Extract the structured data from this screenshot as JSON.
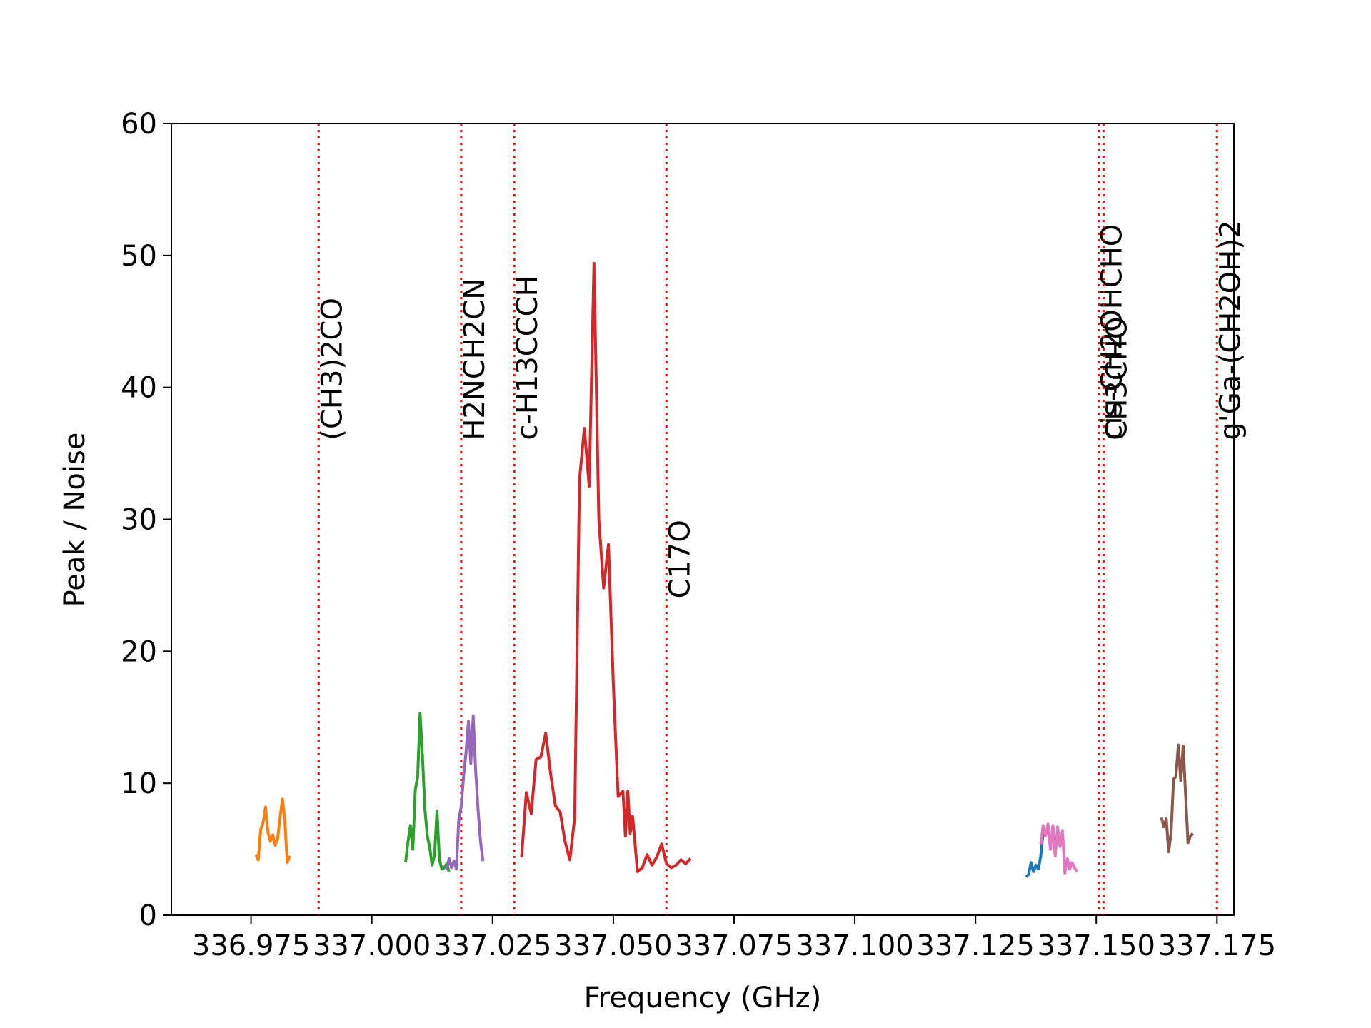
{
  "chart_data": {
    "type": "line",
    "title": "",
    "xlabel": "Frequency (GHz)",
    "ylabel": "Peak / Noise",
    "xlim": [
      336.9585,
      337.1785
    ],
    "ylim": [
      0,
      60
    ],
    "x_ticks": [
      336.975,
      337.0,
      337.025,
      337.05,
      337.075,
      337.1,
      337.125,
      337.15,
      337.175
    ],
    "x_tick_labels": [
      "336.975",
      "337.000",
      "337.025",
      "337.050",
      "337.075",
      "337.100",
      "337.125",
      "337.150",
      "337.175"
    ],
    "y_ticks": [
      0,
      10,
      20,
      30,
      40,
      50,
      60
    ],
    "y_tick_labels": [
      "0",
      "10",
      "20",
      "30",
      "40",
      "50",
      "60"
    ],
    "grid": false,
    "series": [
      {
        "color": "#ff7f0e",
        "x": [
          336.976,
          336.9765,
          336.977,
          336.9775,
          336.978,
          336.9785,
          336.979,
          336.9795,
          336.98,
          336.9805,
          336.981,
          336.9815,
          336.982,
          336.9825,
          336.983
        ],
        "y": [
          4.6,
          4.2,
          6.5,
          7.0,
          8.2,
          6.3,
          5.6,
          6.1,
          5.3,
          5.8,
          7.4,
          8.8,
          7.2,
          4.0,
          4.5
        ]
      },
      {
        "color": "#2ca02c",
        "x": [
          337.007,
          337.0075,
          337.008,
          337.0085,
          337.009,
          337.0095,
          337.01,
          337.0105,
          337.011,
          337.0115,
          337.012,
          337.0125,
          337.013,
          337.0135,
          337.014,
          337.0145,
          337.015,
          337.0155,
          337.016
        ],
        "y": [
          4.0,
          5.6,
          6.8,
          5.0,
          9.5,
          10.5,
          15.3,
          12.0,
          8.0,
          6.0,
          5.1,
          3.8,
          4.6,
          7.9,
          4.2,
          3.5,
          3.6,
          3.9,
          3.3
        ]
      },
      {
        "color": "#9467bd",
        "x": [
          337.0155,
          337.016,
          337.0165,
          337.017,
          337.0175,
          337.018,
          337.0185,
          337.019,
          337.0195,
          337.02,
          337.0205,
          337.021,
          337.0215,
          337.022,
          337.0225,
          337.023
        ],
        "y": [
          3.4,
          4.3,
          3.6,
          4.1,
          3.5,
          7.2,
          8.2,
          10.5,
          12.3,
          14.7,
          11.5,
          15.1,
          11.0,
          8.0,
          5.6,
          4.1
        ]
      },
      {
        "color": "#d62728",
        "x": [
          337.031,
          337.032,
          337.033,
          337.034,
          337.035,
          337.036,
          337.037,
          337.038,
          337.039,
          337.04,
          337.041,
          337.042,
          337.043,
          337.044,
          337.045,
          337.046,
          337.047,
          337.048,
          337.049,
          337.05,
          337.051,
          337.052,
          337.0525,
          337.053,
          337.0535,
          337.054,
          337.055,
          337.056,
          337.057,
          337.058,
          337.059,
          337.06,
          337.061,
          337.062,
          337.063,
          337.064,
          337.065,
          337.066
        ],
        "y": [
          4.4,
          9.3,
          7.7,
          11.8,
          12.0,
          13.8,
          10.8,
          8.3,
          7.8,
          5.6,
          4.2,
          7.4,
          33.0,
          36.9,
          32.5,
          49.4,
          30.0,
          24.8,
          28.1,
          17.5,
          9.0,
          9.4,
          6.0,
          9.4,
          6.2,
          7.5,
          3.3,
          3.6,
          4.6,
          3.8,
          4.4,
          5.4,
          3.9,
          3.6,
          3.8,
          4.2,
          3.9,
          4.3
        ]
      },
      {
        "color": "#1f77b4",
        "x": [
          337.1355,
          337.136,
          337.1365,
          337.137,
          337.1375,
          337.138,
          337.1385,
          337.139
        ],
        "y": [
          2.9,
          3.1,
          4.0,
          3.3,
          3.8,
          3.5,
          4.5,
          6.3
        ]
      },
      {
        "color": "#e377c2",
        "x": [
          337.1385,
          337.139,
          337.1395,
          337.14,
          337.1405,
          337.141,
          337.1415,
          337.142,
          337.1425,
          337.143,
          337.1435,
          337.144,
          337.1445,
          337.145,
          337.1455,
          337.146
        ],
        "y": [
          5.4,
          6.8,
          6.0,
          6.9,
          5.0,
          6.8,
          4.5,
          6.7,
          5.2,
          6.4,
          3.2,
          4.3,
          3.5,
          4.0,
          3.6,
          3.3
        ]
      },
      {
        "color": "#8c564b",
        "x": [
          337.1635,
          337.164,
          337.1645,
          337.165,
          337.1655,
          337.166,
          337.1665,
          337.167,
          337.1675,
          337.168,
          337.1685,
          337.169,
          337.1695,
          337.17
        ],
        "y": [
          7.4,
          6.7,
          7.3,
          4.8,
          6.3,
          10.3,
          10.5,
          12.9,
          10.2,
          12.8,
          9.1,
          5.5,
          6.0,
          6.2
        ]
      }
    ],
    "line_markers": [
      {
        "x": 336.989,
        "label": "(CH3)2CO",
        "label_y": 36
      },
      {
        "x": 337.0185,
        "label": "H2NCH2CN",
        "label_y": 36
      },
      {
        "x": 337.0295,
        "label": "c-H13CCCH",
        "label_y": 36
      },
      {
        "x": 337.061,
        "label": "C17O",
        "label_y": 24
      },
      {
        "x": 337.1505,
        "label": "cis-CH2OHCHO",
        "label_y": 36
      },
      {
        "x": 337.1515,
        "label": "CH3CHO",
        "label_y": 36
      },
      {
        "x": 337.175,
        "label": "g'Ga-(CH2OH)2",
        "label_y": 36
      }
    ],
    "marker_color": "#ff0000"
  }
}
